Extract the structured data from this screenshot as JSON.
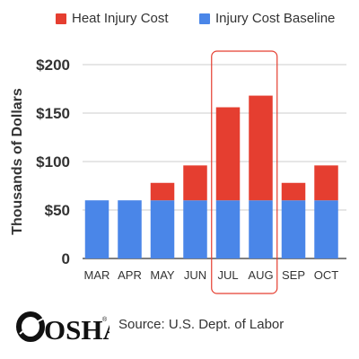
{
  "chart_data": {
    "type": "bar",
    "stacked": true,
    "categories": [
      "MAR",
      "APR",
      "MAY",
      "JUN",
      "JUL",
      "AUG",
      "SEP",
      "OCT"
    ],
    "series": [
      {
        "name": "Injury Cost Baseline",
        "color": "#4A86E8",
        "values": [
          60,
          60,
          60,
          60,
          60,
          60,
          60,
          60
        ]
      },
      {
        "name": "Heat Injury Cost",
        "color": "#E53E30",
        "values": [
          0,
          0,
          18,
          36,
          96,
          108,
          18,
          36
        ]
      }
    ],
    "ylabel": "Thousands of Dollars",
    "ylim": [
      0,
      200
    ],
    "yticks": [
      0,
      50,
      100,
      150,
      200
    ],
    "ytick_labels": [
      "0",
      "$50",
      "$100",
      "$150",
      "$200"
    ],
    "grid": true,
    "legend_position": "top",
    "highlight_categories": [
      "JUL",
      "AUG"
    ],
    "highlight_color": "#E53E30"
  },
  "legend": [
    {
      "label": "Heat Injury Cost",
      "color": "#E53E30"
    },
    {
      "label": "Injury Cost Baseline",
      "color": "#4A86E8"
    }
  ],
  "footer": {
    "logo_text": "OSHA",
    "logo_mark": "®",
    "source": "Source: U.S. Dept. of Labor"
  }
}
